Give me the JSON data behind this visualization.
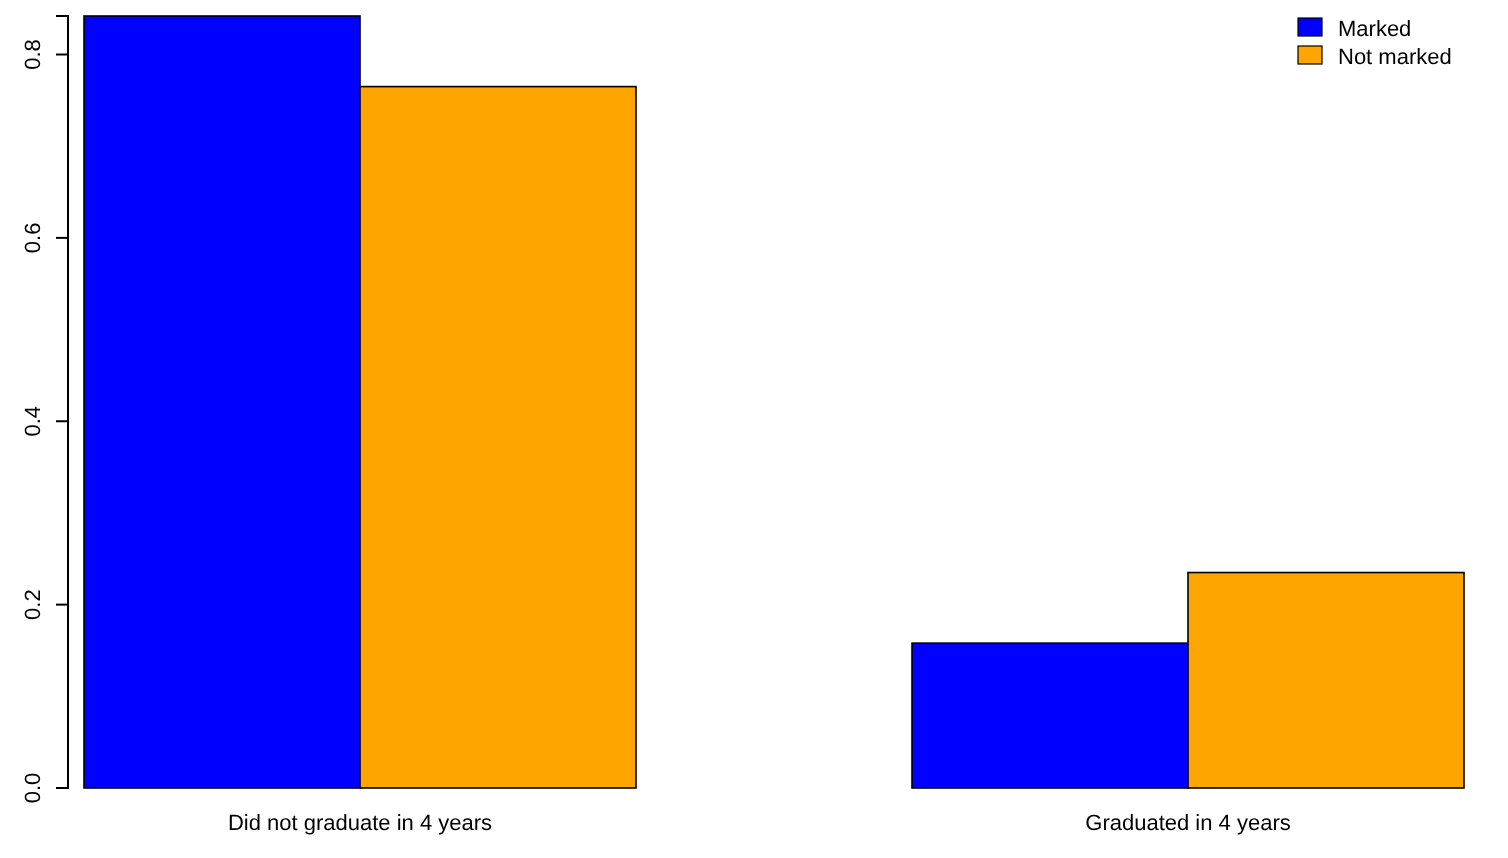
{
  "chart_data": {
    "type": "bar",
    "categories": [
      "Did not graduate in 4 years",
      "Graduated in 4 years"
    ],
    "series": [
      {
        "name": "Marked",
        "color": "#0000ff",
        "values": [
          0.842,
          0.158
        ]
      },
      {
        "name": "Not marked",
        "color": "#ffa500",
        "values": [
          0.765,
          0.235
        ]
      }
    ],
    "ylim": [
      0,
      0.842
    ],
    "yticks": [
      {
        "value": 0,
        "label": "0.0"
      },
      {
        "value": 0.2,
        "label": "0.2"
      },
      {
        "value": 0.4,
        "label": "0.4"
      },
      {
        "value": 0.6,
        "label": "0.6"
      },
      {
        "value": 0.8,
        "label": "0.8"
      }
    ],
    "grid": false,
    "legend": "top right"
  }
}
